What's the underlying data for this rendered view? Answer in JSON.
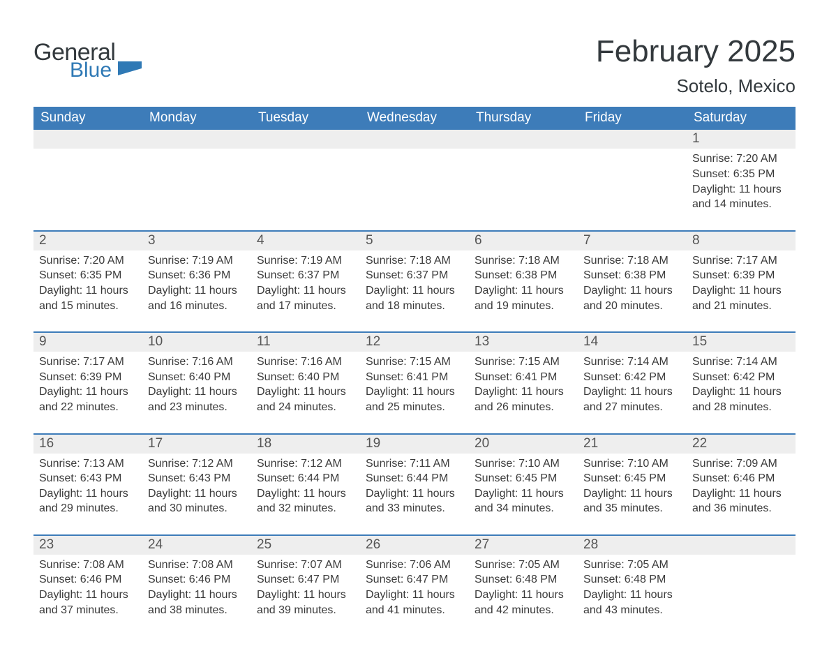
{
  "brand": {
    "general": "General",
    "blue": "Blue",
    "accent": "#2f79b5"
  },
  "title": {
    "month": "February 2025",
    "location": "Sotelo, Mexico"
  },
  "colors": {
    "header_bg": "#3d7cb9",
    "header_text": "#ffffff",
    "strip_bg": "#eeeeee",
    "week_divider": "#3d7cb9",
    "body_text": "#3a3a3a",
    "title_text": "#33393d"
  },
  "days_of_week": [
    "Sunday",
    "Monday",
    "Tuesday",
    "Wednesday",
    "Thursday",
    "Friday",
    "Saturday"
  ],
  "labels": {
    "sunrise": "Sunrise",
    "sunset": "Sunset",
    "daylight": "Daylight"
  },
  "weeks": [
    [
      null,
      null,
      null,
      null,
      null,
      null,
      {
        "n": "1",
        "sunrise": "7:20 AM",
        "sunset": "6:35 PM",
        "daylight": "11 hours and 14 minutes."
      }
    ],
    [
      {
        "n": "2",
        "sunrise": "7:20 AM",
        "sunset": "6:35 PM",
        "daylight": "11 hours and 15 minutes."
      },
      {
        "n": "3",
        "sunrise": "7:19 AM",
        "sunset": "6:36 PM",
        "daylight": "11 hours and 16 minutes."
      },
      {
        "n": "4",
        "sunrise": "7:19 AM",
        "sunset": "6:37 PM",
        "daylight": "11 hours and 17 minutes."
      },
      {
        "n": "5",
        "sunrise": "7:18 AM",
        "sunset": "6:37 PM",
        "daylight": "11 hours and 18 minutes."
      },
      {
        "n": "6",
        "sunrise": "7:18 AM",
        "sunset": "6:38 PM",
        "daylight": "11 hours and 19 minutes."
      },
      {
        "n": "7",
        "sunrise": "7:18 AM",
        "sunset": "6:38 PM",
        "daylight": "11 hours and 20 minutes."
      },
      {
        "n": "8",
        "sunrise": "7:17 AM",
        "sunset": "6:39 PM",
        "daylight": "11 hours and 21 minutes."
      }
    ],
    [
      {
        "n": "9",
        "sunrise": "7:17 AM",
        "sunset": "6:39 PM",
        "daylight": "11 hours and 22 minutes."
      },
      {
        "n": "10",
        "sunrise": "7:16 AM",
        "sunset": "6:40 PM",
        "daylight": "11 hours and 23 minutes."
      },
      {
        "n": "11",
        "sunrise": "7:16 AM",
        "sunset": "6:40 PM",
        "daylight": "11 hours and 24 minutes."
      },
      {
        "n": "12",
        "sunrise": "7:15 AM",
        "sunset": "6:41 PM",
        "daylight": "11 hours and 25 minutes."
      },
      {
        "n": "13",
        "sunrise": "7:15 AM",
        "sunset": "6:41 PM",
        "daylight": "11 hours and 26 minutes."
      },
      {
        "n": "14",
        "sunrise": "7:14 AM",
        "sunset": "6:42 PM",
        "daylight": "11 hours and 27 minutes."
      },
      {
        "n": "15",
        "sunrise": "7:14 AM",
        "sunset": "6:42 PM",
        "daylight": "11 hours and 28 minutes."
      }
    ],
    [
      {
        "n": "16",
        "sunrise": "7:13 AM",
        "sunset": "6:43 PM",
        "daylight": "11 hours and 29 minutes."
      },
      {
        "n": "17",
        "sunrise": "7:12 AM",
        "sunset": "6:43 PM",
        "daylight": "11 hours and 30 minutes."
      },
      {
        "n": "18",
        "sunrise": "7:12 AM",
        "sunset": "6:44 PM",
        "daylight": "11 hours and 32 minutes."
      },
      {
        "n": "19",
        "sunrise": "7:11 AM",
        "sunset": "6:44 PM",
        "daylight": "11 hours and 33 minutes."
      },
      {
        "n": "20",
        "sunrise": "7:10 AM",
        "sunset": "6:45 PM",
        "daylight": "11 hours and 34 minutes."
      },
      {
        "n": "21",
        "sunrise": "7:10 AM",
        "sunset": "6:45 PM",
        "daylight": "11 hours and 35 minutes."
      },
      {
        "n": "22",
        "sunrise": "7:09 AM",
        "sunset": "6:46 PM",
        "daylight": "11 hours and 36 minutes."
      }
    ],
    [
      {
        "n": "23",
        "sunrise": "7:08 AM",
        "sunset": "6:46 PM",
        "daylight": "11 hours and 37 minutes."
      },
      {
        "n": "24",
        "sunrise": "7:08 AM",
        "sunset": "6:46 PM",
        "daylight": "11 hours and 38 minutes."
      },
      {
        "n": "25",
        "sunrise": "7:07 AM",
        "sunset": "6:47 PM",
        "daylight": "11 hours and 39 minutes."
      },
      {
        "n": "26",
        "sunrise": "7:06 AM",
        "sunset": "6:47 PM",
        "daylight": "11 hours and 41 minutes."
      },
      {
        "n": "27",
        "sunrise": "7:05 AM",
        "sunset": "6:48 PM",
        "daylight": "11 hours and 42 minutes."
      },
      {
        "n": "28",
        "sunrise": "7:05 AM",
        "sunset": "6:48 PM",
        "daylight": "11 hours and 43 minutes."
      },
      null
    ]
  ]
}
